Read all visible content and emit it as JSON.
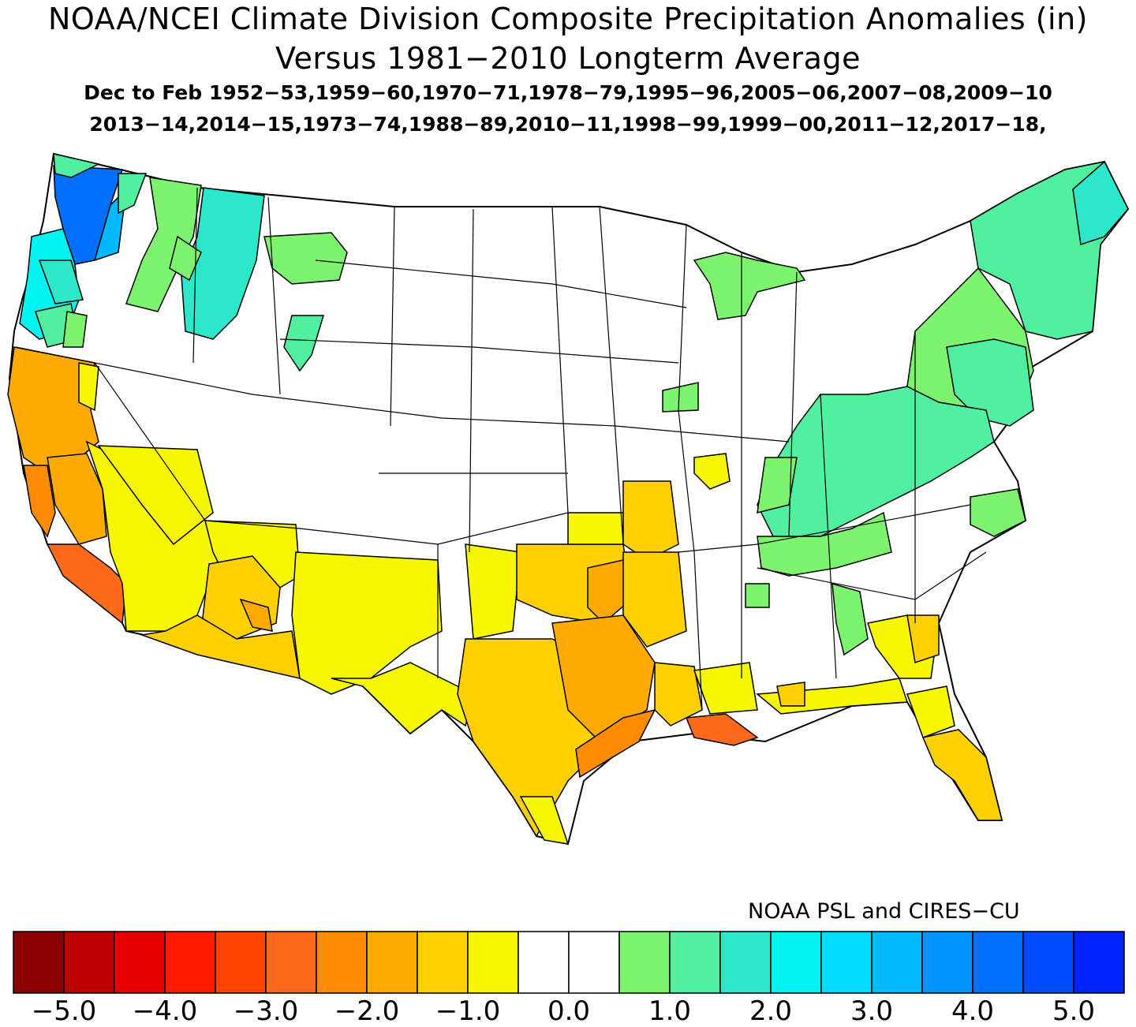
{
  "title": {
    "line1": "NOAA/NCEI Climate Division Composite Precipitation Anomalies (in)",
    "line2": "Versus 1981−2010 Longterm Average",
    "line3": "Dec to Feb  1952−53,1959−60,1970−71,1978−79,1995−96,2005−06,2007−08,2009−10",
    "line4": "2013−14,2014−15,1973−74,1988−89,2010−11,1998−99,1999−00,2011−12,2017−18,"
  },
  "credit": "NOAA PSL and CIRES−CU",
  "colorbar": {
    "colors": [
      "#8b0000",
      "#bf0000",
      "#e60000",
      "#ff1a00",
      "#ff4400",
      "#ff6a1a",
      "#ff8c00",
      "#ffaa00",
      "#ffd000",
      "#f7f700",
      "#ffffff",
      "#ffffff",
      "#7cf46e",
      "#4ff0a0",
      "#2ae8c8",
      "#00f5f0",
      "#00dbff",
      "#00b8ff",
      "#0095ff",
      "#0070ff",
      "#004cff",
      "#0022ff"
    ],
    "tick_labels": [
      "−5.0",
      "−4.0",
      "−3.0",
      "−2.0",
      "−1.0",
      "0.0",
      "1.0",
      "2.0",
      "3.0",
      "4.0",
      "5.0"
    ],
    "tick_values": [
      -5.0,
      -4.0,
      -3.0,
      -2.0,
      -1.0,
      0.0,
      1.0,
      2.0,
      3.0,
      4.0,
      5.0
    ],
    "range": [
      -5.5,
      5.5
    ],
    "step": 0.5
  },
  "map_regions": [
    {
      "name": "washington-coast",
      "anomaly_bin": "3.5 to 4.5",
      "color": "#0070ff"
    },
    {
      "name": "oregon-coast",
      "anomaly_bin": "2.0 to 3.0",
      "color": "#00f5f0"
    },
    {
      "name": "washington-cascades",
      "anomaly_bin": "1.5 to 2.5",
      "color": "#2ae8c8"
    },
    {
      "name": "idaho-panhandle",
      "anomaly_bin": "1.0 to 2.0",
      "color": "#4ff0a0"
    },
    {
      "name": "central-washington",
      "anomaly_bin": "0.5 to 1.0",
      "color": "#7cf46e"
    },
    {
      "name": "central-montana",
      "anomaly_bin": "0.5 to 1.0",
      "color": "#7cf46e"
    },
    {
      "name": "western-wyoming",
      "anomaly_bin": "1.0 to 1.5",
      "color": "#4ff0a0"
    },
    {
      "name": "northern-great-lakes",
      "anomaly_bin": "0.5 to 1.0",
      "color": "#7cf46e"
    },
    {
      "name": "iowa-northeast",
      "anomaly_bin": "0.5 to 1.0",
      "color": "#7cf46e"
    },
    {
      "name": "ohio-valley",
      "anomaly_bin": "1.0 to 1.5",
      "color": "#4ff0a0"
    },
    {
      "name": "tennessee-valley",
      "anomaly_bin": "0.5 to 1.0",
      "color": "#7cf46e"
    },
    {
      "name": "northeast",
      "anomaly_bin": "1.0 to 1.5",
      "color": "#4ff0a0"
    },
    {
      "name": "maine-coast",
      "anomaly_bin": "1.5 to 2.5",
      "color": "#2ae8c8"
    },
    {
      "name": "northern-california",
      "anomaly_bin": "-2.0 to -2.5",
      "color": "#ffaa00"
    },
    {
      "name": "central-california-coast",
      "anomaly_bin": "-2.5 to -3.0",
      "color": "#ff8c00"
    },
    {
      "name": "southern-california-coast",
      "anomaly_bin": "-2.5 to -3.0",
      "color": "#ff8c00"
    },
    {
      "name": "nevada-south",
      "anomaly_bin": "-0.5 to -1.0",
      "color": "#f7f700"
    },
    {
      "name": "arizona",
      "anomaly_bin": "-1.0 to -1.5",
      "color": "#ffd000"
    },
    {
      "name": "new-mexico",
      "anomaly_bin": "-0.5 to -1.0",
      "color": "#f7f700"
    },
    {
      "name": "west-texas",
      "anomaly_bin": "-0.5 to -1.0",
      "color": "#f7f700"
    },
    {
      "name": "central-texas",
      "anomaly_bin": "-1.0 to -1.5",
      "color": "#ffd000"
    },
    {
      "name": "east-texas-oklahoma",
      "anomaly_bin": "-1.5 to -2.0",
      "color": "#ffaa00"
    },
    {
      "name": "upper-texas-coast",
      "anomaly_bin": "-2.0 to -2.5",
      "color": "#ff8c00"
    },
    {
      "name": "southern-louisiana",
      "anomaly_bin": "-2.5 to -3.0",
      "color": "#ff6a1a"
    },
    {
      "name": "gulf-coast",
      "anomaly_bin": "-0.5 to -1.0",
      "color": "#f7f700"
    },
    {
      "name": "florida",
      "anomaly_bin": "-1.0 to -1.5",
      "color": "#ffd000"
    },
    {
      "name": "kansas-missouri",
      "anomaly_bin": "-0.5 to -1.5",
      "color": "#ffd000"
    }
  ]
}
